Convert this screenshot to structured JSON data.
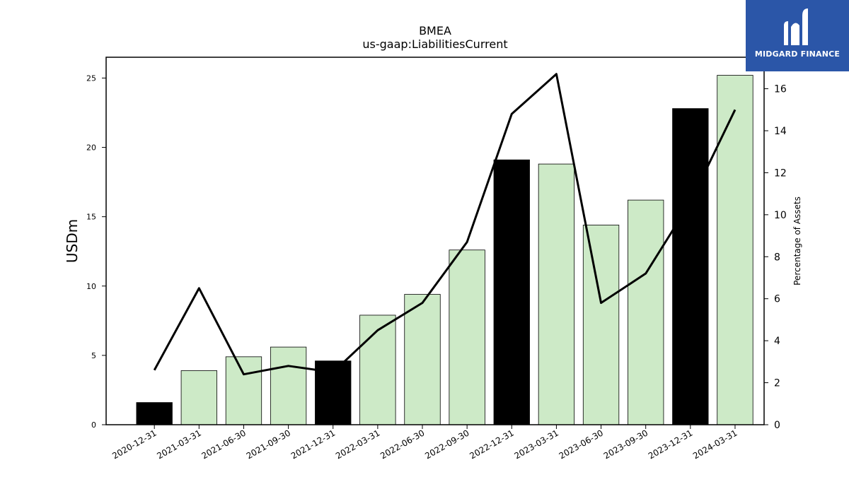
{
  "brand": {
    "name": "MIDGARD FINANCE",
    "color": "#2b56a8"
  },
  "chart_data": {
    "type": "bar",
    "title": "BMEA",
    "subtitle": "us-gaap:LiabilitiesCurrent",
    "ylabel": "USDm",
    "y2label": "Percentage of Assets",
    "ylim": [
      0,
      26.5
    ],
    "y2lim": [
      0,
      17.5
    ],
    "yticks": [
      0,
      5,
      10,
      15,
      20,
      25
    ],
    "y2ticks": [
      0,
      2,
      4,
      6,
      8,
      10,
      12,
      14,
      16
    ],
    "categories": [
      "2020-12-31",
      "2021-03-31",
      "2021-06-30",
      "2021-09-30",
      "2021-12-31",
      "2022-03-31",
      "2022-06-30",
      "2022-09-30",
      "2022-12-31",
      "2023-03-31",
      "2023-06-30",
      "2023-09-30",
      "2023-12-31",
      "2024-03-31"
    ],
    "series": [
      {
        "type": "bar",
        "axis": "left",
        "values": [
          1.6,
          3.9,
          4.9,
          5.6,
          4.6,
          7.9,
          9.4,
          12.6,
          19.1,
          18.8,
          14.4,
          16.2,
          22.8,
          25.2
        ],
        "highlight": [
          true,
          false,
          false,
          false,
          true,
          false,
          false,
          false,
          true,
          false,
          false,
          false,
          true,
          false
        ],
        "colors": {
          "highlight": "#000000",
          "normal": "#cdeac7"
        }
      },
      {
        "type": "line",
        "axis": "right",
        "values": [
          2.6,
          6.5,
          2.4,
          2.8,
          2.5,
          4.5,
          5.8,
          8.7,
          14.8,
          16.7,
          5.8,
          7.2,
          10.6,
          15.0
        ],
        "color": "#000000"
      }
    ],
    "grid": false
  }
}
